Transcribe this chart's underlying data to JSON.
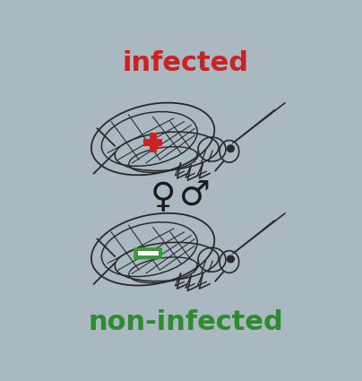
{
  "background_color": "#aab8c2",
  "title_infected": "infected",
  "title_noninfected": "non-infected",
  "infected_color": "#cc2222",
  "noninfected_color": "#2e8b2e",
  "plus_color": "#cc2222",
  "minus_color": "#3a9a3a",
  "symbol_color": "#1a1a1a",
  "insect_color": "#2a2a2a",
  "title_fontsize": 22,
  "gender_fontsize": 28
}
